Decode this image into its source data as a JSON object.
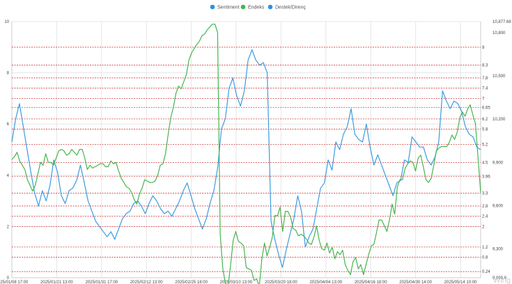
{
  "chart_data": {
    "type": "line",
    "title": "",
    "legend": {
      "placement": "top-center"
    },
    "series": [
      {
        "name": "Sentiment",
        "color": "#3b9be0",
        "axis": "left",
        "values": [
          5.3,
          6.2,
          6.8,
          5.9,
          5.0,
          4.1,
          3.3,
          2.8,
          3.4,
          3.0,
          3.6,
          4.6,
          4.1,
          3.2,
          2.9,
          3.4,
          3.5,
          3.8,
          4.4,
          3.7,
          3.0,
          2.6,
          2.2,
          2.0,
          1.8,
          1.6,
          1.8,
          1.5,
          1.9,
          2.3,
          2.5,
          2.6,
          2.9,
          3.0,
          2.8,
          2.5,
          2.9,
          3.2,
          3.0,
          2.7,
          2.5,
          2.6,
          2.4,
          2.7,
          3.0,
          3.4,
          3.7,
          3.2,
          2.7,
          2.3,
          1.9,
          2.3,
          2.9,
          3.4,
          4.3,
          5.8,
          6.2,
          7.4,
          7.8,
          7.1,
          6.7,
          7.3,
          8.5,
          8.9,
          8.5,
          8.3,
          8.4,
          8.0,
          2.2,
          1.5,
          0.9,
          0.4,
          1.1,
          1.7,
          2.3,
          3.2,
          2.6,
          1.2,
          1.6,
          1.9,
          2.7,
          3.5,
          3.7,
          4.6,
          4.2,
          5.3,
          5.0,
          5.6,
          5.9,
          6.6,
          5.6,
          5.4,
          5.3,
          6.0,
          5.1,
          4.4,
          4.8,
          4.4,
          4.0,
          3.6,
          3.2,
          3.7,
          3.8,
          4.6,
          4.5,
          5.5,
          5.3,
          5.1,
          5.1,
          4.6,
          4.4,
          4.7,
          5.3,
          7.3,
          6.9,
          6.6,
          6.9,
          6.8,
          6.5,
          5.9,
          5.6,
          5.5,
          5.1,
          5.0
        ]
      },
      {
        "name": "Endeks",
        "color": "#46b450",
        "axis": "right",
        "values": [
          9920,
          9940,
          9970,
          9910,
          9880,
          9850,
          9780,
          9740,
          9700,
          9740,
          9820,
          9900,
          9880,
          9960,
          9900,
          9900,
          9880,
          9930,
          9980,
          9990,
          9980,
          9950,
          9960,
          9990,
          9970,
          9950,
          9990,
          9990,
          9930,
          9850,
          9880,
          9860,
          9870,
          9880,
          9890,
          9890,
          9870,
          9870,
          9910,
          9890,
          9900,
          9840,
          9790,
          9760,
          9730,
          9720,
          9690,
          9640,
          9610,
          9680,
          9720,
          9780,
          9770,
          9760,
          9760,
          9770,
          9810,
          9880,
          9890,
          9960,
          10090,
          10210,
          10280,
          10380,
          10430,
          10410,
          10460,
          10510,
          10610,
          10660,
          10690,
          10720,
          10740,
          10780,
          10790,
          10820,
          10840,
          10860,
          10860,
          10800,
          9400,
          9160,
          9060,
          9030,
          9190,
          9360,
          9420,
          9350,
          9340,
          9320,
          9170,
          9160,
          9150,
          9080,
          9090,
          9040,
          9230,
          9340,
          9250,
          9310,
          9380,
          9530,
          9530,
          9590,
          9420,
          9560,
          9560,
          9520,
          9440,
          9430,
          9390,
          9400,
          9390,
          9370,
          9340,
          9330,
          9380,
          9460,
          9360,
          9300,
          9290,
          9340,
          9270,
          9310,
          9230,
          9280,
          9260,
          9290,
          9190,
          9150,
          9120,
          9210,
          9240,
          9160,
          9190,
          9120,
          9190,
          9260,
          9320,
          9330,
          9410,
          9500,
          9500,
          9460,
          9420,
          9500,
          9610,
          9540,
          9730,
          9780,
          9780,
          9860,
          9890,
          9910,
          9900,
          9840,
          9930,
          9950,
          9870,
          9780,
          9760,
          9790,
          9880,
          9980,
          10000,
          10010,
          10010,
          10010,
          10040,
          10090,
          10060,
          10110,
          10210,
          10250,
          10220,
          10270,
          10300,
          10230,
          10170,
          9930,
          9690
        ]
      },
      {
        "name": "Destek/Direnç",
        "color": "#d23c3c",
        "axis": "right",
        "style": "dashed-horizontal",
        "levels": [
          9,
          8.3,
          7.8,
          7.4,
          7,
          6.65,
          6.2,
          5.8,
          5.2,
          4.5,
          3.96,
          3.3,
          2.8,
          2.4,
          2,
          1.2,
          0.8,
          0.24
        ]
      }
    ],
    "x_ticks": [
      "2025/01/08 17:00",
      "2025/01/21 13:00",
      "2025/01/31 17:00",
      "2025/02/12 13:00",
      "2025/02/25 18:00",
      "2025/03/10 13:00",
      "2025/03/20 18:00",
      "2025/04/04 13:00",
      "2025/04/16 18:00",
      "2025/04/30 14:00",
      "2025/05/14 10:00"
    ],
    "y_left": {
      "ticks": [
        "0",
        "2",
        "4",
        "6",
        "8",
        "10"
      ],
      "ylim": [
        0,
        10
      ]
    },
    "y_right": {
      "ticks": [
        "9,098.8",
        "9,300",
        "9,600",
        "9,900",
        "10,200",
        "10,500",
        "10,800",
        "10,877.68"
      ],
      "ylim": [
        9098.8,
        10877.68
      ]
    },
    "grid": true
  },
  "watermark": "Wing"
}
